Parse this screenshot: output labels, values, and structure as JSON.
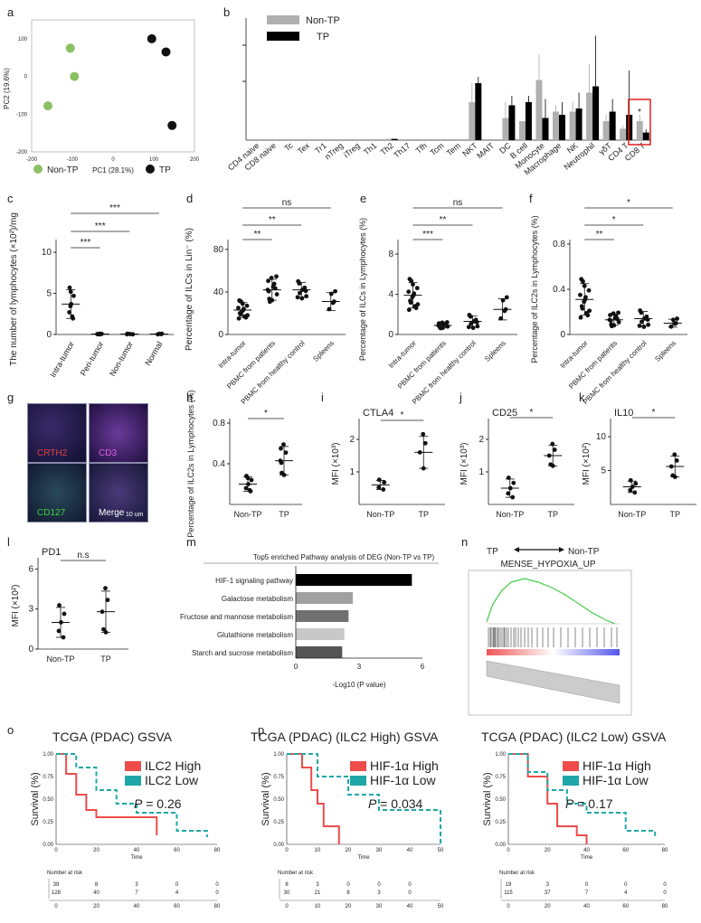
{
  "panel_labels": [
    "a",
    "b",
    "c",
    "d",
    "e",
    "f",
    "g",
    "h",
    "i",
    "j",
    "k",
    "l",
    "m",
    "n",
    "o",
    "p"
  ],
  "colors": {
    "nontp_scatter": "#8bc063",
    "tp_scatter": "#111111",
    "nontp_bar": "#b0b0b0",
    "tp_bar": "#000000",
    "high": "#ee4b4b",
    "low": "#1fa7a7",
    "highlight": "#e02020"
  },
  "a": {
    "xlabel": "PC1 (28.1%)",
    "ylabel": "PC2 (19.6%)",
    "xticks": [
      "-200",
      "-100",
      "0",
      "100",
      "200"
    ],
    "yticks": [
      "100",
      "0",
      "-100",
      "-200"
    ],
    "legend": [
      "Non-TP",
      "TP"
    ]
  },
  "b": {
    "legend": [
      "Non-TP",
      "TP"
    ],
    "categories": [
      "CD4 naive",
      "CD8 naive",
      "Tc",
      "Tex",
      "Tr1",
      "nTreg",
      "iTreg",
      "Th1",
      "Th2",
      "Th17",
      "Tfh",
      "Tcm",
      "Tem",
      "NKT",
      "MAIT",
      "DC",
      "B cell",
      "Monocyte",
      "Macrophage",
      "NK",
      "Neutrophil",
      "γδT",
      "CD4 T",
      "CD8 T"
    ],
    "star": "*"
  },
  "c": {
    "ylabel": "The number of lymphocytes (×10²)/mg",
    "yticks": [
      "10",
      "5",
      "0"
    ],
    "xticks": [
      "Intra-tumor",
      "Peri-tumor",
      "Non-tumor",
      "Normal"
    ],
    "sig": [
      "***",
      "***",
      "***"
    ]
  },
  "d": {
    "ylabel": "Percentage of ILCs in Lin⁻ (%)",
    "yticks": [
      "80",
      "40",
      "0"
    ],
    "xticks": [
      "Intra-tumor",
      "PBMC from patients",
      "PBMC from healthy control",
      "Spleens"
    ],
    "sig": [
      "**",
      "**",
      "ns"
    ]
  },
  "e": {
    "ylabel": "Percentage of ILCs in Lymphocytes (%)",
    "yticks": [
      "8",
      "4",
      "0"
    ],
    "xticks": [
      "Intra-tumor",
      "PBMC from patients",
      "PBMC from healthy control",
      "Spleens"
    ],
    "sig": [
      "***",
      "**",
      "ns"
    ]
  },
  "f": {
    "ylabel": "Percentage of ILC2s in Lymphocytes (%)",
    "yticks": [
      "0.8",
      "0.4",
      "0"
    ],
    "xticks": [
      "Intra-tumor",
      "PBMC from patients",
      "PBMC from healthy control",
      "Spleens"
    ],
    "sig": [
      "**",
      "*",
      "*"
    ]
  },
  "g": {
    "labels": [
      "CRTH2",
      "CD3",
      "CD127",
      "Merge"
    ],
    "scale": "10 um"
  },
  "h": {
    "ylabel": "Percentage of ILC2s in Lymphocytes (%)",
    "yticks": [
      "0.8",
      "0.4"
    ],
    "xticks": [
      "Non-TP",
      "TP"
    ],
    "sig": "*"
  },
  "i": {
    "title": "CTLA4",
    "ylabel": "MFI (×10³)",
    "yticks": [
      "2",
      "1"
    ],
    "xticks": [
      "Non-TP",
      "TP"
    ],
    "sig": "*"
  },
  "j": {
    "title": "CD25",
    "ylabel": "MFI (×10³)",
    "yticks": [
      "2",
      "1"
    ],
    "xticks": [
      "Non-TP",
      "TP"
    ],
    "sig": "*"
  },
  "k": {
    "title": "IL10",
    "ylabel": "MFI (×10²)",
    "yticks": [
      "10",
      "5"
    ],
    "xticks": [
      "Non-TP",
      "TP"
    ],
    "sig": "*"
  },
  "l": {
    "title": "PD1",
    "ylabel": "MFI (×10²)",
    "yticks": [
      "6",
      "3",
      "0"
    ],
    "xticks": [
      "Non-TP",
      "TP"
    ],
    "sig": "n.s"
  },
  "m": {
    "title": "Top5 enriched Pathway analysis of DEG (Non-TP vs TP)",
    "xlabel": "-Log10 (P value)",
    "xticks": [
      "0",
      "3",
      "6"
    ]
  },
  "n": {
    "left": "TP",
    "right": "Non-TP",
    "title": "MENSE_HYPOXIA_UP"
  },
  "o": {
    "title": "TCGA (PDAC) GSVA",
    "legend": [
      "ILC2 High",
      "ILC2 Low"
    ],
    "p": "P = 0.26",
    "risk_header": "Number at risk",
    "risk": [
      [
        "39",
        "8",
        "3",
        "0",
        "0"
      ],
      [
        "128",
        "40",
        "7",
        "4",
        "0"
      ]
    ],
    "xlabel": "Time",
    "ylabel": "Survival (%)"
  },
  "p1": {
    "title": "TCGA (PDAC) (ILC2 High) GSVA",
    "legend": [
      "HIF-1α High",
      "HIF-1α Low"
    ],
    "p": "P = 0.034",
    "risk_header": "Number at risk",
    "risk": [
      [
        "8",
        "3",
        "0",
        "0",
        "0"
      ],
      [
        "30",
        "21",
        "8",
        "3",
        "0"
      ]
    ],
    "xlabel": "Time",
    "ylabel": "Survival (%)"
  },
  "p2": {
    "title": "TCGA (PDAC) (ILC2 Low) GSVA",
    "legend": [
      "HIF-1α High",
      "HIF-1α Low"
    ],
    "p": "P = 0.17",
    "risk_header": "Number at risk",
    "risk": [
      [
        "19",
        "3",
        "0",
        "0",
        "0"
      ],
      [
        "115",
        "37",
        "7",
        "4",
        "0"
      ]
    ],
    "xlabel": "Time",
    "ylabel": "Survival (%)"
  },
  "chart_data": [
    {
      "id": "a",
      "type": "scatter",
      "xlabel": "PC1 (28.1%)",
      "ylabel": "PC2 (19.6%)",
      "xlim": [
        -200,
        200
      ],
      "ylim": [
        -200,
        150
      ],
      "series": [
        {
          "name": "Non-TP",
          "x": [
            -105,
            -95,
            -160
          ],
          "y": [
            75,
            0,
            -78
          ]
        },
        {
          "name": "TP",
          "x": [
            95,
            130,
            145
          ],
          "y": [
            100,
            65,
            -130
          ]
        }
      ]
    },
    {
      "id": "b",
      "type": "bar",
      "ylim": [
        0,
        2
      ],
      "categories": [
        "CD4 naive",
        "CD8 naive",
        "Tc",
        "Tex",
        "Tr1",
        "nTreg",
        "iTreg",
        "Th1",
        "Th2",
        "Th17",
        "Tfh",
        "Tcm",
        "Tem",
        "NKT",
        "MAIT",
        "DC",
        "B cell",
        "Monocyte",
        "Macrophage",
        "NK",
        "Neutrophil",
        "γδT",
        "CD4 T",
        "CD8 T"
      ],
      "series": [
        {
          "name": "Non-TP",
          "values": [
            0,
            0,
            0,
            0,
            0,
            0,
            0,
            0,
            0.02,
            0,
            0,
            0,
            0,
            0.6,
            0,
            0.35,
            0.3,
            0.95,
            0.45,
            0.45,
            0.75,
            0.3,
            0.18,
            0.3
          ],
          "err": [
            0,
            0,
            0,
            0,
            0,
            0,
            0,
            0,
            0,
            0,
            0,
            0,
            0,
            0.3,
            0,
            0.25,
            0,
            0.4,
            0.1,
            0.15,
            0.45,
            0.1,
            0.05,
            0.1
          ]
        },
        {
          "name": "TP",
          "values": [
            0,
            0,
            0,
            0,
            0,
            0,
            0,
            0,
            0.02,
            0,
            0,
            0,
            0,
            0.9,
            0,
            0.55,
            0.6,
            0.35,
            0.4,
            0.5,
            0.85,
            0.45,
            0.4,
            0.12
          ],
          "err": [
            0,
            0,
            0,
            0,
            0,
            0,
            0,
            0,
            0,
            0,
            0,
            0,
            0,
            0.1,
            0,
            0.15,
            0.1,
            0.3,
            0.2,
            0.25,
            0.8,
            0.2,
            0.7,
            0.05
          ]
        }
      ]
    },
    {
      "id": "c",
      "type": "scatter",
      "ylim": [
        0,
        11
      ],
      "categories": [
        "Intra-tumor",
        "Peri-tumor",
        "Non-tumor",
        "Normal"
      ],
      "means": [
        3.7,
        0.05,
        0.05,
        0.05
      ]
    },
    {
      "id": "d",
      "type": "scatter",
      "ylim": [
        0,
        85
      ],
      "categories": [
        "Intra-tumor",
        "PBMC from patients",
        "PBMC from healthy control",
        "Spleens"
      ],
      "means": [
        23,
        42,
        42,
        31
      ]
    },
    {
      "id": "e",
      "type": "scatter",
      "ylim": [
        0,
        9
      ],
      "categories": [
        "Intra-tumor",
        "PBMC from patients",
        "PBMC from healthy control",
        "Spleens"
      ],
      "means": [
        3.9,
        0.9,
        1.3,
        2.5
      ]
    },
    {
      "id": "f",
      "type": "scatter",
      "ylim": [
        0,
        0.8
      ],
      "categories": [
        "Intra-tumor",
        "PBMC from patients",
        "PBMC from healthy control",
        "Spleens"
      ],
      "means": [
        0.31,
        0.13,
        0.14,
        0.1
      ]
    },
    {
      "id": "h",
      "type": "scatter",
      "ylim": [
        0,
        0.8
      ],
      "categories": [
        "Non-TP",
        "TP"
      ],
      "means": [
        0.2,
        0.43
      ]
    },
    {
      "id": "i",
      "type": "scatter",
      "ylim": [
        0,
        2.5
      ],
      "categories": [
        "Non-TP",
        "TP"
      ],
      "means": [
        0.6,
        1.6
      ]
    },
    {
      "id": "j",
      "type": "scatter",
      "ylim": [
        0,
        2.5
      ],
      "categories": [
        "Non-TP",
        "TP"
      ],
      "means": [
        0.5,
        1.5
      ]
    },
    {
      "id": "k",
      "type": "scatter",
      "ylim": [
        0,
        12
      ],
      "categories": [
        "Non-TP",
        "TP"
      ],
      "means": [
        2.6,
        5.6
      ]
    },
    {
      "id": "l",
      "type": "scatter",
      "ylim": [
        0,
        6.5
      ],
      "categories": [
        "Non-TP",
        "TP"
      ],
      "means": [
        2.0,
        2.8
      ]
    },
    {
      "id": "m",
      "type": "bar",
      "orientation": "horizontal",
      "xlim": [
        0,
        6
      ],
      "categories": [
        "HIF-1 signaling pathway",
        "Galactose metabolism",
        "Fructose and mannose metabolism",
        "Glutathione metabolism",
        "Starch and sucrose metabolism"
      ],
      "values": [
        5.5,
        2.7,
        2.5,
        2.3,
        2.2
      ]
    },
    {
      "id": "o",
      "type": "line",
      "xlim": [
        0,
        80
      ],
      "ylim": [
        0,
        1
      ],
      "series": [
        {
          "name": "ILC2 High",
          "x": [
            0,
            5,
            10,
            15,
            20,
            25,
            50
          ],
          "y": [
            1,
            0.78,
            0.55,
            0.38,
            0.3,
            0.3,
            0.1
          ]
        },
        {
          "name": "ILC2 Low",
          "x": [
            0,
            10,
            20,
            30,
            40,
            60,
            75
          ],
          "y": [
            1,
            0.85,
            0.6,
            0.45,
            0.35,
            0.15,
            0.08
          ]
        }
      ]
    },
    {
      "id": "p1",
      "type": "line",
      "xlim": [
        0,
        50
      ],
      "ylim": [
        0,
        1
      ],
      "series": [
        {
          "name": "HIF-1α High",
          "x": [
            0,
            5,
            8,
            10,
            12,
            17
          ],
          "y": [
            1,
            0.85,
            0.6,
            0.45,
            0.2,
            0
          ]
        },
        {
          "name": "HIF-1α Low",
          "x": [
            0,
            10,
            20,
            30,
            45,
            50
          ],
          "y": [
            1,
            0.75,
            0.55,
            0.38,
            0.38,
            0
          ]
        }
      ]
    },
    {
      "id": "p2",
      "type": "line",
      "xlim": [
        0,
        80
      ],
      "ylim": [
        0,
        1
      ],
      "series": [
        {
          "name": "HIF-1α High",
          "x": [
            0,
            10,
            20,
            25,
            35,
            40
          ],
          "y": [
            1,
            0.75,
            0.45,
            0.2,
            0.1,
            0
          ]
        },
        {
          "name": "HIF-1α Low",
          "x": [
            0,
            10,
            20,
            30,
            40,
            60,
            75
          ],
          "y": [
            1,
            0.8,
            0.6,
            0.45,
            0.35,
            0.15,
            0.08
          ]
        }
      ]
    }
  ]
}
